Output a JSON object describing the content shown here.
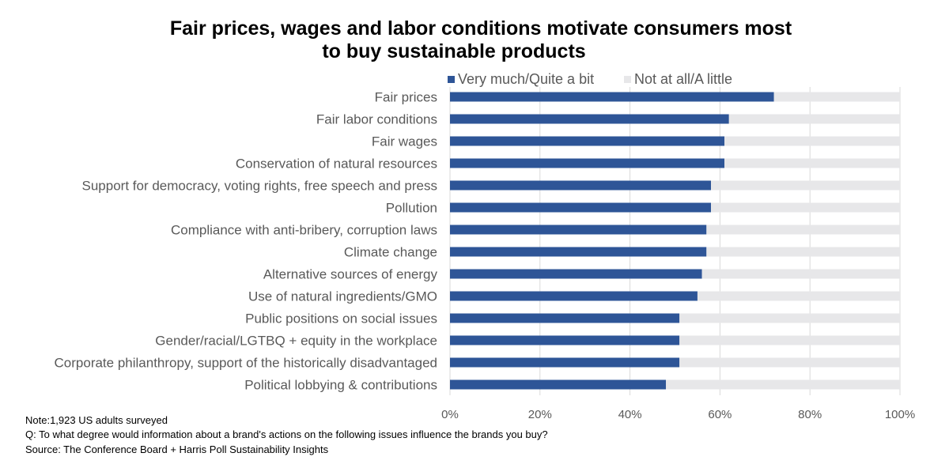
{
  "colors": {
    "primary": "#2e5597",
    "secondary": "#e7e7e9",
    "grid": "#d9d9d9",
    "label": "#595959"
  },
  "chart_data": {
    "type": "bar",
    "orientation": "horizontal",
    "stacked": true,
    "title": "Fair prices, wages and labor conditions motivate consumers most to buy sustainable products",
    "title_lines": [
      "Fair prices, wages and labor conditions motivate consumers most",
      "to buy sustainable products"
    ],
    "xlabel": "",
    "ylabel": "",
    "xlim": [
      0,
      100
    ],
    "x_ticks": [
      "0%",
      "20%",
      "40%",
      "60%",
      "80%",
      "100%"
    ],
    "grid": true,
    "legend_position": "top",
    "categories": [
      "Fair prices",
      "Fair labor conditions",
      "Fair wages",
      "Conservation of natural resources",
      "Support for democracy, voting rights, free speech and press",
      "Pollution",
      "Compliance with anti-bribery, corruption laws",
      "Climate change",
      "Alternative sources of energy",
      "Use of natural ingredients/GMO",
      "Public positions on social issues",
      "Gender/racial/LGTBQ + equity in the workplace",
      "Corporate philanthropy, support of the historically disadvantaged",
      "Political lobbying & contributions"
    ],
    "series": [
      {
        "name": "Very much/Quite a bit",
        "color": "#2e5597",
        "values": [
          72,
          62,
          61,
          61,
          58,
          58,
          57,
          57,
          56,
          55,
          51,
          51,
          51,
          48
        ]
      },
      {
        "name": "Not at all/A little",
        "color": "#e7e7e9",
        "values": [
          28,
          38,
          39,
          39,
          42,
          42,
          43,
          43,
          44,
          45,
          49,
          49,
          49,
          52
        ]
      }
    ]
  },
  "notes": {
    "note": "Note:1,923 US adults surveyed",
    "question": "Q: To what degree would information about a brand's actions on the following issues influence the brands you buy?",
    "source": "Source: The Conference Board + Harris Poll Sustainability  Insights"
  }
}
